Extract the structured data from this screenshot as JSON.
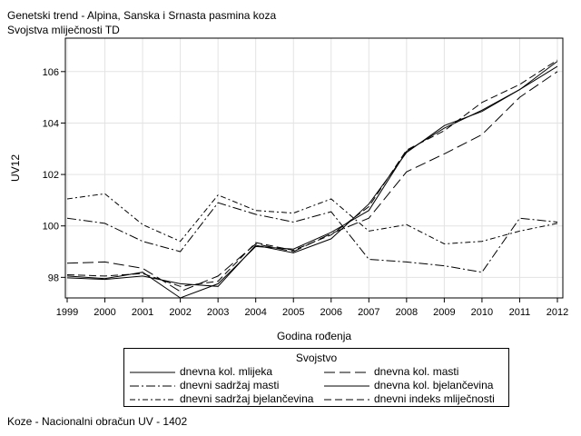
{
  "header": {
    "title": "Genetski trend - Alpina, Sanska i Srnasta pasmina koza",
    "subtitle": "Svojstva mliječnosti TD"
  },
  "footer": {
    "note": "Koze - Nacionalni obračun UV - 1402"
  },
  "chart_data": {
    "type": "line",
    "title": "Genetski trend - Alpina, Sanska i Srnasta pasmina koza",
    "subtitle": "Svojstva mliječnosti TD",
    "xlabel": "Godina rođenja",
    "ylabel": "UV12",
    "x": [
      "1999",
      "2000",
      "2001",
      "2002",
      "2003",
      "2004",
      "2005",
      "2006",
      "2007",
      "2008",
      "2009",
      "2010",
      "2011",
      "2012"
    ],
    "ylim": [
      97.2,
      107.3
    ],
    "yticks": [
      "98",
      "100",
      "102",
      "104",
      "106"
    ],
    "grid": true,
    "legend_title": "Svojstvo",
    "legend_position": "bottom",
    "series": [
      {
        "name": "dnevna kol. mlijeka",
        "dash": "solid",
        "values": [
          98.05,
          97.95,
          98.2,
          97.2,
          97.75,
          99.2,
          99.1,
          99.75,
          100.6,
          102.9,
          103.8,
          104.5,
          105.3,
          106.2
        ]
      },
      {
        "name": "dnevna kol. masti",
        "dash": "longdash",
        "values": [
          98.55,
          98.6,
          98.35,
          97.45,
          98.05,
          99.3,
          99.0,
          99.7,
          100.3,
          102.1,
          102.8,
          103.55,
          105.0,
          106.0
        ]
      },
      {
        "name": "dnevni sadržaj masti",
        "dash": "dashdot",
        "values": [
          100.3,
          100.1,
          99.4,
          99.0,
          100.9,
          100.45,
          100.15,
          100.55,
          98.7,
          98.6,
          98.45,
          98.2,
          100.3,
          100.15
        ]
      },
      {
        "name": "dnevna kol. bjelančevina",
        "dash": "solid",
        "values": [
          97.98,
          97.92,
          98.05,
          97.75,
          97.65,
          99.25,
          98.95,
          99.5,
          100.85,
          102.85,
          103.9,
          104.45,
          105.3,
          106.4
        ]
      },
      {
        "name": "dnevni sadržaj bjelančevina",
        "dash": "dashdot2",
        "values": [
          101.05,
          101.25,
          100.05,
          99.4,
          101.2,
          100.6,
          100.5,
          101.05,
          99.8,
          100.05,
          99.3,
          99.4,
          99.8,
          100.1
        ]
      },
      {
        "name": "dnevni indeks mliječnosti",
        "dash": "mediumdash",
        "values": [
          98.1,
          98.05,
          98.15,
          97.65,
          97.85,
          99.35,
          99.05,
          99.65,
          100.75,
          102.95,
          103.7,
          104.8,
          105.5,
          106.45
        ]
      }
    ]
  }
}
